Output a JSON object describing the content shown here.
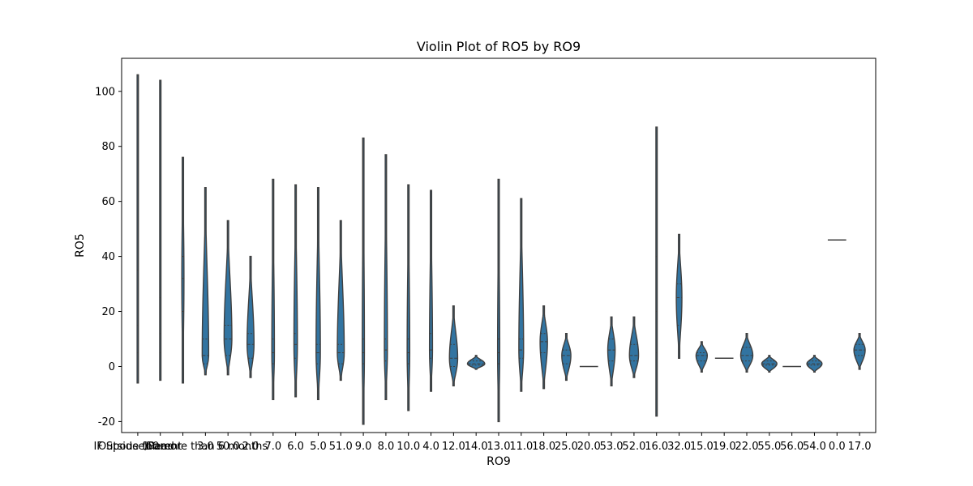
{
  "chart_data": {
    "type": "violin",
    "title": "Violin Plot of RO5 by RO9",
    "xlabel": "RO9",
    "ylabel": "RO5",
    "ylim": [
      -24,
      112
    ],
    "yticks": [
      -20,
      0,
      20,
      40,
      60,
      80,
      100
    ],
    "color": "#3274a1",
    "categories": [
      "IF Spouse/Parent",
      "Dead",
      "Outside for more than 6 months",
      "3.0",
      "50.0",
      "2.0",
      "7.0",
      "6.0",
      "5.0",
      "51.0",
      "9.0",
      "8.0",
      "10.0",
      "4.0",
      "12.0",
      "14.0",
      "13.0",
      "11.0",
      "18.0",
      "25.0",
      "20.0",
      "53.0",
      "52.0",
      "16.0",
      "32.0",
      "15.0",
      "19.0",
      "22.0",
      "55.0",
      "56.0",
      "54.0",
      "0.0",
      "17.0"
    ],
    "tick_labels": [
      "IF Spouse/Parent",
      "1.0",
      "Dead",
      "Outside for more than 6 months",
      "3.0",
      "50.0",
      "2.0",
      "7.0",
      "6.0",
      "5.0",
      "51.0",
      "9.0",
      "8.0",
      "10.0",
      "4.0",
      "12.0",
      "14.0",
      "13.0",
      "11.0",
      "18.0",
      "25.0",
      "20.0",
      "53.0",
      "52.0",
      "16.0",
      "32.0",
      "15.0",
      "19.0",
      "22.0",
      "55.0",
      "56.0",
      "54.0",
      "0.0",
      "17.0"
    ],
    "ranges": [
      [
        -6,
        106
      ],
      [
        -5,
        104
      ],
      [
        -6,
        76
      ],
      [
        -3,
        65
      ],
      [
        -3,
        53
      ],
      [
        -4,
        40
      ],
      [
        -12,
        68
      ],
      [
        -11,
        66
      ],
      [
        -12,
        65
      ],
      [
        -5,
        53
      ],
      [
        -21,
        83
      ],
      [
        -12,
        77
      ],
      [
        -16,
        66
      ],
      [
        -9,
        64
      ],
      [
        -7,
        22
      ],
      [
        -1,
        4
      ],
      [
        -20,
        68
      ],
      [
        -9,
        61
      ],
      [
        -8,
        22
      ],
      [
        -5,
        12
      ],
      [
        0,
        0
      ],
      [
        -7,
        18
      ],
      [
        -4,
        18
      ],
      [
        -18,
        87
      ],
      [
        3,
        48
      ],
      [
        -2,
        9
      ],
      [
        3,
        3
      ],
      [
        -2,
        12
      ],
      [
        -2,
        4
      ],
      [
        0,
        0
      ],
      [
        -2,
        4
      ],
      [
        46,
        46
      ],
      [
        -1,
        12
      ]
    ],
    "quartiles": [
      [
        5,
        15,
        35
      ],
      [
        5,
        12,
        25
      ],
      [
        20,
        32,
        40
      ],
      [
        1,
        4,
        10
      ],
      [
        4,
        10,
        15
      ],
      [
        3,
        8,
        12
      ],
      [
        1,
        5,
        10
      ],
      [
        3,
        8,
        12
      ],
      [
        1,
        5,
        8
      ],
      [
        1,
        5,
        8
      ],
      [
        1,
        5,
        10
      ],
      [
        2,
        6,
        10
      ],
      [
        1,
        5,
        10
      ],
      [
        3,
        6,
        12
      ],
      [
        0,
        3,
        8
      ],
      [
        0.5,
        1,
        2
      ],
      [
        1,
        5,
        10
      ],
      [
        3,
        6,
        10
      ],
      [
        5,
        9,
        12
      ],
      [
        1,
        4,
        6
      ],
      [
        0,
        0,
        0
      ],
      [
        2,
        6,
        10
      ],
      [
        2,
        4,
        8
      ],
      [
        5,
        20,
        40
      ],
      [
        15,
        25,
        30
      ],
      [
        2,
        4,
        5
      ],
      [
        3,
        3,
        3
      ],
      [
        2,
        4,
        7
      ],
      [
        0.5,
        1,
        2
      ],
      [
        0,
        0,
        0
      ],
      [
        0.5,
        1,
        2
      ],
      [
        46,
        46,
        46
      ],
      [
        4,
        6,
        8
      ]
    ],
    "widths": [
      0.06,
      0.06,
      0.1,
      0.3,
      0.36,
      0.32,
      0.12,
      0.16,
      0.2,
      0.32,
      0.1,
      0.14,
      0.12,
      0.14,
      0.38,
      0.8,
      0.1,
      0.22,
      0.34,
      0.42,
      0.5,
      0.34,
      0.42,
      0.06,
      0.26,
      0.52,
      0.6,
      0.56,
      0.7,
      0.6,
      0.7,
      0.7,
      0.52
    ]
  }
}
